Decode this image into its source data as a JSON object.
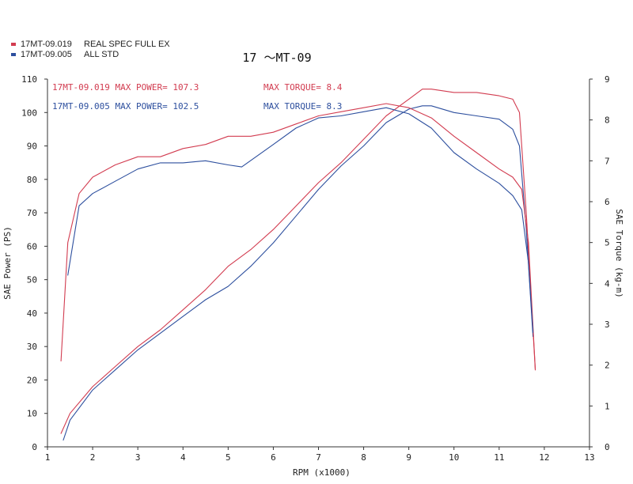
{
  "legend": [
    {
      "id": "17MT-09.019",
      "desc": "REAL SPEC FULL EX",
      "color": "#d23c50"
    },
    {
      "id": "17MT-09.005",
      "desc": "ALL STD",
      "color": "#2d4f9e"
    }
  ],
  "annotations": {
    "red_power": "17MT-09.019  MAX POWER= 107.3",
    "red_torque": "MAX TORQUE= 8.4",
    "blue_power": "17MT-09.005  MAX POWER= 102.5",
    "blue_torque": "MAX TORQUE= 8.3"
  },
  "chart_data": {
    "type": "line",
    "title": "17 ～MT-09",
    "xlabel": "RPM (x1000)",
    "ylabel": "SAE Power (PS)",
    "y2label": "SAE Torque (kg-m)",
    "xlim": [
      1,
      13
    ],
    "ylim": [
      0,
      110
    ],
    "y2lim": [
      0,
      9
    ],
    "xticks": [
      1,
      2,
      3,
      4,
      5,
      6,
      7,
      8,
      9,
      10,
      11,
      12,
      13
    ],
    "yticks": [
      0,
      10,
      20,
      30,
      40,
      50,
      60,
      70,
      80,
      90,
      100,
      110
    ],
    "y2ticks": [
      0,
      1,
      2,
      3,
      4,
      5,
      6,
      7,
      8,
      9
    ],
    "grid": false,
    "series": [
      {
        "name": "17MT-09.019",
        "quantity": "power",
        "axis": "left",
        "color": "#d23c50",
        "x": [
          1.3,
          1.5,
          2,
          2.5,
          3,
          3.5,
          4,
          4.5,
          5,
          5.5,
          6,
          6.5,
          7,
          7.5,
          8,
          8.5,
          9,
          9.3,
          9.5,
          10,
          10.5,
          11,
          11.3,
          11.45,
          11.6,
          11.8
        ],
        "y": [
          4,
          10,
          18,
          24,
          30,
          35,
          41,
          47,
          54,
          59,
          65,
          72,
          79,
          85,
          92,
          99,
          104,
          107,
          107,
          106,
          106,
          105,
          104,
          100,
          70,
          23
        ]
      },
      {
        "name": "17MT-09.005",
        "quantity": "power",
        "axis": "left",
        "color": "#2d4f9e",
        "x": [
          1.35,
          1.5,
          2,
          2.5,
          3,
          3.5,
          4,
          4.5,
          5,
          5.5,
          6,
          6.5,
          7,
          7.5,
          8,
          8.5,
          9,
          9.3,
          9.5,
          10,
          10.5,
          11,
          11.3,
          11.45,
          11.6,
          11.75
        ],
        "y": [
          2,
          8,
          17,
          23,
          29,
          34,
          39,
          44,
          48,
          54,
          61,
          69,
          77,
          84,
          90,
          97,
          101,
          102,
          102,
          100,
          99,
          98,
          95,
          90,
          65,
          33
        ]
      },
      {
        "name": "17MT-09.019",
        "quantity": "torque",
        "axis": "right",
        "color": "#d23c50",
        "x": [
          1.3,
          1.45,
          1.7,
          2,
          2.5,
          3,
          3.5,
          4,
          4.5,
          5,
          5.5,
          6,
          6.5,
          7,
          7.5,
          8,
          8.5,
          9,
          9.5,
          10,
          10.5,
          11,
          11.3,
          11.5,
          11.65,
          11.8
        ],
        "y": [
          2.1,
          5,
          6.2,
          6.6,
          6.9,
          7.1,
          7.1,
          7.3,
          7.4,
          7.6,
          7.6,
          7.7,
          7.9,
          8.1,
          8.2,
          8.3,
          8.4,
          8.3,
          8.05,
          7.6,
          7.2,
          6.8,
          6.6,
          6.3,
          5,
          1.9
        ]
      },
      {
        "name": "17MT-09.005",
        "quantity": "torque",
        "axis": "right",
        "color": "#2d4f9e",
        "x": [
          1.45,
          1.7,
          2,
          2.5,
          3,
          3.5,
          4,
          4.5,
          5,
          5.3,
          6,
          6.5,
          7,
          7.5,
          8,
          8.5,
          9,
          9.5,
          10,
          10.5,
          11,
          11.3,
          11.5,
          11.65,
          11.75
        ],
        "y": [
          4.2,
          5.9,
          6.2,
          6.5,
          6.8,
          6.95,
          6.95,
          7.0,
          6.9,
          6.85,
          7.4,
          7.8,
          8.05,
          8.1,
          8.2,
          8.3,
          8.15,
          7.8,
          7.2,
          6.8,
          6.45,
          6.15,
          5.8,
          4.5,
          2.8
        ]
      }
    ]
  }
}
